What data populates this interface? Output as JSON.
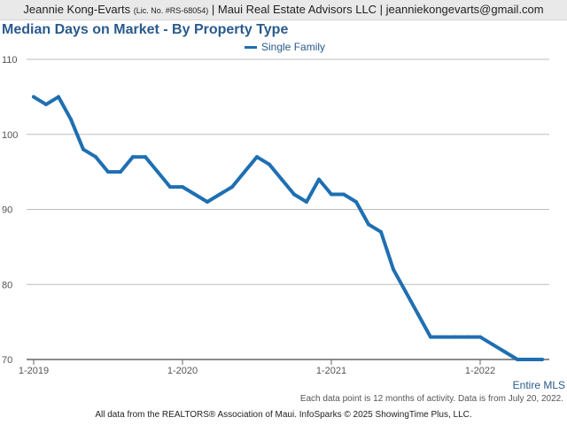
{
  "header": {
    "name": "Jeannie Kong-Evarts",
    "license": "(Lic. No. #RS-68054)",
    "rest": "| Maui Real Estate Advisors LLC | jeanniekongevarts@gmail.com"
  },
  "chart_data": {
    "type": "line",
    "title": "Median Days on Market - By Property Type",
    "xlabel": "",
    "ylabel": "",
    "ylim": [
      70,
      110
    ],
    "yticks": [
      70,
      80,
      90,
      100,
      110
    ],
    "xticks": [
      "1-2019",
      "1-2020",
      "1-2021",
      "1-2022"
    ],
    "grid": true,
    "legend_position": "top-center",
    "colors": {
      "series": "#1f6fb2",
      "title": "#2a5a8c"
    },
    "x": [
      "1-2019",
      "2-2019",
      "3-2019",
      "4-2019",
      "5-2019",
      "6-2019",
      "7-2019",
      "8-2019",
      "9-2019",
      "10-2019",
      "11-2019",
      "12-2019",
      "1-2020",
      "2-2020",
      "3-2020",
      "4-2020",
      "5-2020",
      "6-2020",
      "7-2020",
      "8-2020",
      "9-2020",
      "10-2020",
      "11-2020",
      "12-2020",
      "1-2021",
      "2-2021",
      "3-2021",
      "4-2021",
      "5-2021",
      "6-2021",
      "7-2021",
      "8-2021",
      "9-2021",
      "10-2021",
      "11-2021",
      "12-2021",
      "1-2022",
      "2-2022",
      "3-2022",
      "4-2022",
      "5-2022",
      "6-2022"
    ],
    "series": [
      {
        "name": "Single Family",
        "values": [
          105,
          104,
          105,
          102,
          98,
          97,
          95,
          95,
          97,
          97,
          95,
          93,
          93,
          92,
          91,
          92,
          93,
          95,
          97,
          96,
          94,
          92,
          91,
          94,
          92,
          92,
          91,
          88,
          87,
          82,
          79,
          76,
          73,
          73,
          73,
          73,
          73,
          72,
          71,
          70,
          70,
          70
        ]
      }
    ]
  },
  "footer": {
    "region": "Entire MLS",
    "note": "Each data point is 12 months of activity. Data is from July 20, 2022.",
    "source": "All data from the REALTORS® Association of Maui. InfoSparks © 2025 ShowingTime Plus, LLC."
  }
}
